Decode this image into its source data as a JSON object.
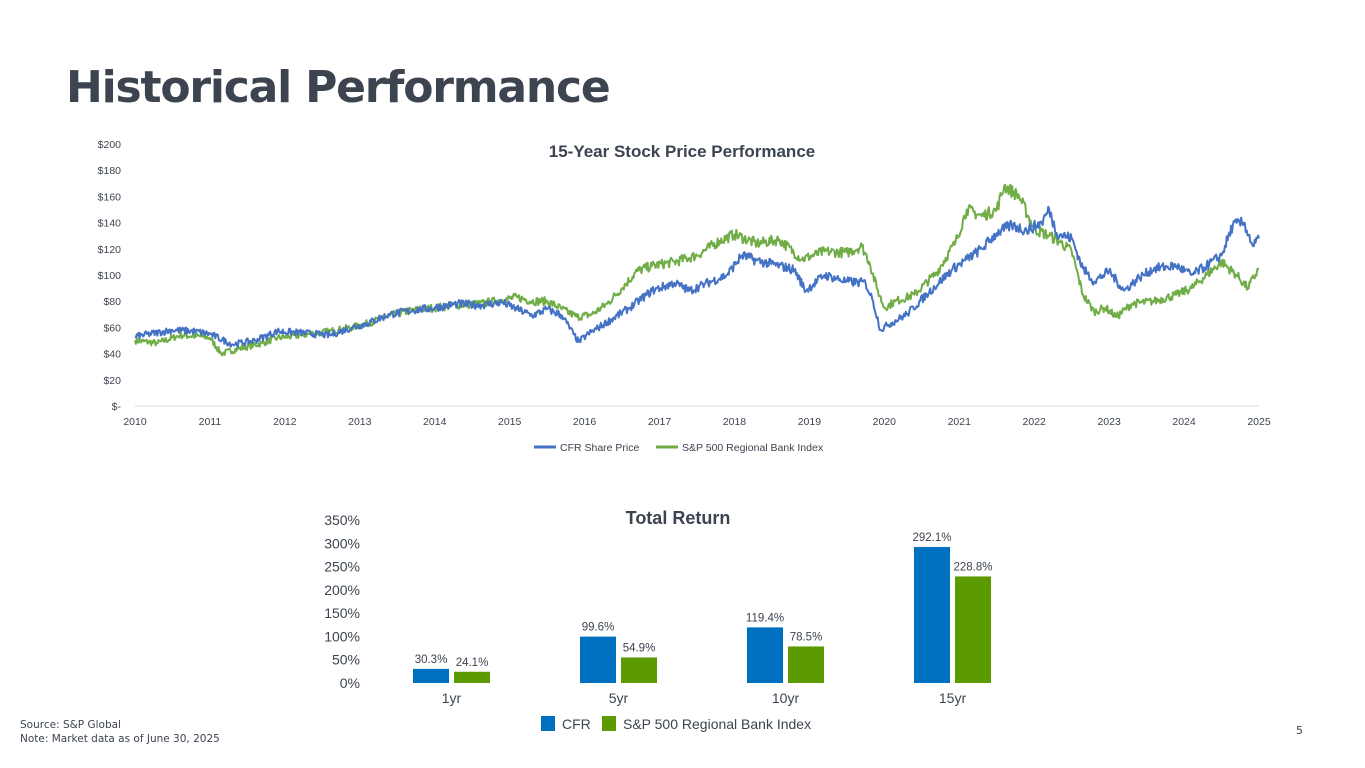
{
  "page": {
    "title": "Historical Performance",
    "source": "Source: S&P Global",
    "note": "Note: Market data as of June 30, 2025",
    "page_number": "5"
  },
  "colors": {
    "cfr_line": "#4472c4",
    "index_line": "#70ad47",
    "cfr_bar": "#0070c0",
    "index_bar": "#5b9b00",
    "text": "#3c4450"
  },
  "chart_data": [
    {
      "type": "line",
      "title": "15-Year Stock Price Performance",
      "xlabel": "",
      "ylabel": "",
      "x_ticks": [
        "2010",
        "2011",
        "2012",
        "2013",
        "2014",
        "2015",
        "2016",
        "2017",
        "2018",
        "2019",
        "2020",
        "2021",
        "2022",
        "2023",
        "2024",
        "2025"
      ],
      "y_ticks": [
        "$-",
        "$20",
        "$40",
        "$60",
        "$80",
        "$100",
        "$120",
        "$140",
        "$160",
        "$180",
        "$200"
      ],
      "xlim": [
        2010,
        2025
      ],
      "ylim": [
        0,
        200
      ],
      "legend_position": "bottom",
      "series": [
        {
          "name": "CFR Share Price",
          "points": [
            [
              2010,
              53
            ],
            [
              2010.5,
              58
            ],
            [
              2010.8,
              57
            ],
            [
              2011,
              55
            ],
            [
              2011.3,
              47
            ],
            [
              2011.6,
              50
            ],
            [
              2011.9,
              57
            ],
            [
              2012.2,
              56
            ],
            [
              2012.6,
              54
            ],
            [
              2012.9,
              60
            ],
            [
              2013.1,
              63
            ],
            [
              2013.4,
              70
            ],
            [
              2013.7,
              73
            ],
            [
              2014,
              75
            ],
            [
              2014.3,
              78
            ],
            [
              2014.6,
              77
            ],
            [
              2014.9,
              79
            ],
            [
              2015.1,
              74
            ],
            [
              2015.3,
              69
            ],
            [
              2015.5,
              74
            ],
            [
              2015.7,
              69
            ],
            [
              2015.85,
              55
            ],
            [
              2015.92,
              49
            ],
            [
              2016.05,
              55
            ],
            [
              2016.3,
              64
            ],
            [
              2016.6,
              75
            ],
            [
              2016.9,
              88
            ],
            [
              2017.2,
              94
            ],
            [
              2017.4,
              88
            ],
            [
              2017.6,
              93
            ],
            [
              2017.9,
              100
            ],
            [
              2018.1,
              115
            ],
            [
              2018.3,
              111
            ],
            [
              2018.6,
              107
            ],
            [
              2018.8,
              104
            ],
            [
              2018.95,
              88
            ],
            [
              2019.2,
              100
            ],
            [
              2019.5,
              95
            ],
            [
              2019.75,
              94
            ],
            [
              2019.85,
              80
            ],
            [
              2019.95,
              58
            ],
            [
              2020.05,
              62
            ],
            [
              2020.3,
              70
            ],
            [
              2020.6,
              87
            ],
            [
              2020.9,
              104
            ],
            [
              2021.1,
              112
            ],
            [
              2021.3,
              120
            ],
            [
              2021.5,
              132
            ],
            [
              2021.7,
              138
            ],
            [
              2021.9,
              134
            ],
            [
              2022.1,
              140
            ],
            [
              2022.2,
              150
            ],
            [
              2022.3,
              132
            ],
            [
              2022.5,
              128
            ],
            [
              2022.65,
              105
            ],
            [
              2022.8,
              95
            ],
            [
              2023.0,
              103
            ],
            [
              2023.2,
              88
            ],
            [
              2023.4,
              98
            ],
            [
              2023.6,
              105
            ],
            [
              2023.9,
              107
            ],
            [
              2024.1,
              100
            ],
            [
              2024.3,
              107
            ],
            [
              2024.5,
              115
            ],
            [
              2024.65,
              138
            ],
            [
              2024.8,
              140
            ],
            [
              2024.92,
              122
            ],
            [
              2025,
              128
            ]
          ]
        },
        {
          "name": "S&P 500 Regional Bank Index",
          "points": [
            [
              2010,
              50
            ],
            [
              2010.3,
              48
            ],
            [
              2010.6,
              54
            ],
            [
              2010.9,
              53
            ],
            [
              2011,
              52
            ],
            [
              2011.15,
              40
            ],
            [
              2011.4,
              44
            ],
            [
              2011.7,
              48
            ],
            [
              2011.9,
              52
            ],
            [
              2012.2,
              54
            ],
            [
              2012.6,
              57
            ],
            [
              2012.9,
              60
            ],
            [
              2013.1,
              63
            ],
            [
              2013.4,
              69
            ],
            [
              2013.7,
              73
            ],
            [
              2014,
              75
            ],
            [
              2014.3,
              77
            ],
            [
              2014.6,
              78
            ],
            [
              2014.9,
              81
            ],
            [
              2015.1,
              83
            ],
            [
              2015.3,
              80
            ],
            [
              2015.5,
              80
            ],
            [
              2015.7,
              74
            ],
            [
              2015.9,
              68
            ],
            [
              2016.1,
              70
            ],
            [
              2016.3,
              78
            ],
            [
              2016.5,
              90
            ],
            [
              2016.7,
              103
            ],
            [
              2016.9,
              107
            ],
            [
              2017.2,
              110
            ],
            [
              2017.5,
              115
            ],
            [
              2017.8,
              126
            ],
            [
              2018.0,
              131
            ],
            [
              2018.3,
              124
            ],
            [
              2018.6,
              127
            ],
            [
              2018.9,
              112
            ],
            [
              2019.2,
              118
            ],
            [
              2019.5,
              117
            ],
            [
              2019.7,
              122
            ],
            [
              2019.8,
              110
            ],
            [
              2019.9,
              90
            ],
            [
              2020.0,
              75
            ],
            [
              2020.15,
              80
            ],
            [
              2020.4,
              85
            ],
            [
              2020.7,
              102
            ],
            [
              2020.95,
              125
            ],
            [
              2021.1,
              150
            ],
            [
              2021.3,
              145
            ],
            [
              2021.5,
              150
            ],
            [
              2021.6,
              168
            ],
            [
              2021.8,
              160
            ],
            [
              2022.0,
              135
            ],
            [
              2022.2,
              130
            ],
            [
              2022.35,
              125
            ],
            [
              2022.5,
              118
            ],
            [
              2022.65,
              85
            ],
            [
              2022.8,
              72
            ],
            [
              2022.95,
              75
            ],
            [
              2023.1,
              68
            ],
            [
              2023.3,
              78
            ],
            [
              2023.6,
              80
            ],
            [
              2023.9,
              85
            ],
            [
              2024.1,
              90
            ],
            [
              2024.3,
              100
            ],
            [
              2024.5,
              110
            ],
            [
              2024.7,
              100
            ],
            [
              2024.85,
              90
            ],
            [
              2025,
              105
            ]
          ]
        }
      ]
    },
    {
      "type": "bar",
      "title": "Total Return",
      "xlabel": "",
      "ylabel": "",
      "categories": [
        "1yr",
        "5yr",
        "10yr",
        "15yr"
      ],
      "y_ticks": [
        "0%",
        "50%",
        "100%",
        "150%",
        "200%",
        "250%",
        "300%",
        "350%"
      ],
      "ylim": [
        0,
        350
      ],
      "legend_position": "bottom",
      "series": [
        {
          "name": "CFR",
          "values": [
            30.3,
            99.6,
            119.4,
            292.1
          ],
          "labels": [
            "30.3%",
            "99.6%",
            "119.4%",
            "292.1%"
          ]
        },
        {
          "name": "S&P 500 Regional Bank Index",
          "values": [
            24.1,
            54.9,
            78.5,
            228.8
          ],
          "labels": [
            "24.1%",
            "54.9%",
            "78.5%",
            "228.8%"
          ]
        }
      ]
    }
  ]
}
